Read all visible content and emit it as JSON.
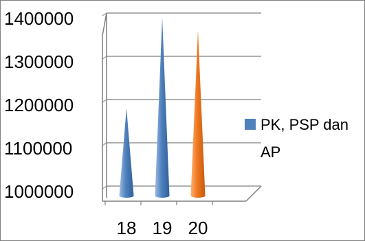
{
  "chart_data": {
    "type": "bar",
    "shape": "cone-3d",
    "categories": [
      "18",
      "19",
      "20"
    ],
    "series": [
      {
        "name": "PK, PSP dan AP",
        "values": [
          1180000,
          1390000,
          1360000
        ]
      }
    ],
    "ylim": [
      1000000,
      1400000
    ],
    "yticks": [
      "1000000",
      "1100000",
      "1200000",
      "1300000",
      "1400000"
    ],
    "xlabel": "",
    "ylabel": "",
    "grid": true,
    "legend": {
      "position": "right",
      "labels": [
        "PK, PSP dan",
        "AP"
      ]
    },
    "colors": {
      "blue": "#4f81bd",
      "orange": "#f07820",
      "highlighted_category": "20",
      "grid": "#7f7f7f"
    }
  }
}
